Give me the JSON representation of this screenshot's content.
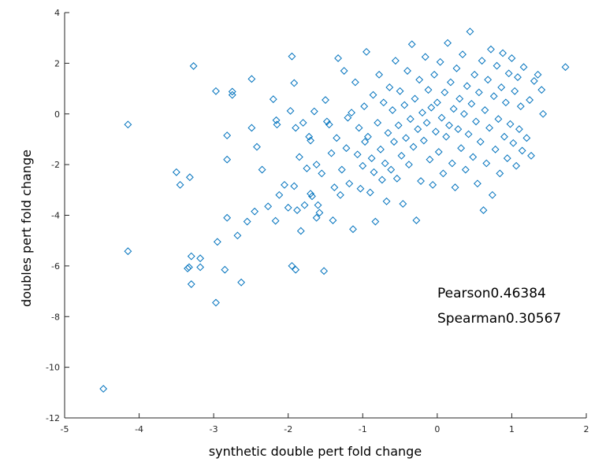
{
  "chart_data": {
    "type": "scatter",
    "title": "",
    "xlabel": "synthetic double pert fold change",
    "ylabel": "doubles pert fold change",
    "xlim": [
      -5,
      2
    ],
    "ylim": [
      -12,
      4
    ],
    "xticks": [
      -5,
      -4,
      -3,
      -2,
      -1,
      0,
      1,
      2
    ],
    "yticks": [
      -12,
      -10,
      -8,
      -6,
      -4,
      -2,
      0,
      2,
      4
    ],
    "xtick_labels": [
      "-5",
      "-4",
      "-3",
      "-2",
      "-1",
      "0",
      "1",
      "2"
    ],
    "ytick_labels": [
      "-12",
      "-10",
      "-8",
      "-6",
      "-4",
      "-2",
      "0",
      "2",
      "4"
    ],
    "marker": "diamond",
    "marker_color": "#0072BD",
    "grid": false,
    "annotations": [
      "Pearson0.46384",
      "Spearman0.30567"
    ],
    "points": [
      [
        -4.48,
        -10.85
      ],
      [
        -4.15,
        -5.42
      ],
      [
        -4.15,
        -0.42
      ],
      [
        -3.27,
        1.89
      ],
      [
        -3.5,
        -2.3
      ],
      [
        -3.45,
        -2.8
      ],
      [
        -3.32,
        -2.5
      ],
      [
        -3.35,
        -6.1
      ],
      [
        -3.3,
        -5.62
      ],
      [
        -3.33,
        -6.05
      ],
      [
        -3.3,
        -6.72
      ],
      [
        -3.18,
        -5.7
      ],
      [
        -3.18,
        -6.05
      ],
      [
        -2.97,
        -7.45
      ],
      [
        -2.95,
        -5.05
      ],
      [
        -2.85,
        -6.15
      ],
      [
        -2.82,
        -4.1
      ],
      [
        -2.82,
        -1.8
      ],
      [
        -2.82,
        -0.85
      ],
      [
        -2.97,
        0.9
      ],
      [
        -2.75,
        0.75
      ],
      [
        -2.75,
        0.88
      ],
      [
        -2.68,
        -4.8
      ],
      [
        -2.63,
        -6.65
      ],
      [
        -2.55,
        -4.25
      ],
      [
        -2.49,
        -0.55
      ],
      [
        -2.49,
        1.38
      ],
      [
        -2.45,
        -3.85
      ],
      [
        -2.42,
        -1.3
      ],
      [
        -2.35,
        -2.2
      ],
      [
        -2.27,
        -3.65
      ],
      [
        -2.2,
        0.58
      ],
      [
        -2.17,
        -4.22
      ],
      [
        -2.16,
        -0.25
      ],
      [
        -2.15,
        -0.42
      ],
      [
        -2.12,
        -3.2
      ],
      [
        -2.05,
        -2.8
      ],
      [
        -2.0,
        -3.7
      ],
      [
        -1.97,
        0.12
      ],
      [
        -1.95,
        2.27
      ],
      [
        -1.95,
        -6.0
      ],
      [
        -1.92,
        1.22
      ],
      [
        -1.92,
        -2.85
      ],
      [
        -1.9,
        -6.15
      ],
      [
        -1.9,
        -0.55
      ],
      [
        -1.88,
        -3.8
      ],
      [
        -1.85,
        -1.7
      ],
      [
        -1.83,
        -4.62
      ],
      [
        -1.8,
        -0.35
      ],
      [
        -1.78,
        -3.6
      ],
      [
        -1.75,
        -2.15
      ],
      [
        -1.72,
        -0.9
      ],
      [
        -1.7,
        -1.05
      ],
      [
        -1.7,
        -3.15
      ],
      [
        -1.68,
        -3.25
      ],
      [
        -1.65,
        0.1
      ],
      [
        -1.62,
        -2.0
      ],
      [
        -1.62,
        -4.1
      ],
      [
        -1.6,
        -3.6
      ],
      [
        -1.58,
        -3.9
      ],
      [
        -1.55,
        -2.35
      ],
      [
        -1.52,
        -6.2
      ],
      [
        -1.5,
        0.55
      ],
      [
        -1.48,
        -0.3
      ],
      [
        -1.45,
        -0.42
      ],
      [
        -1.42,
        -1.55
      ],
      [
        -1.4,
        -4.2
      ],
      [
        -1.38,
        -2.9
      ],
      [
        -1.35,
        -0.95
      ],
      [
        -1.33,
        2.2
      ],
      [
        -1.3,
        -3.2
      ],
      [
        -1.28,
        -2.2
      ],
      [
        -1.25,
        1.7
      ],
      [
        -1.22,
        -1.35
      ],
      [
        -1.2,
        -0.15
      ],
      [
        -1.18,
        -2.75
      ],
      [
        -1.15,
        0.05
      ],
      [
        -1.13,
        -4.55
      ],
      [
        -1.1,
        1.25
      ],
      [
        -1.07,
        -1.6
      ],
      [
        -1.05,
        -0.55
      ],
      [
        -1.03,
        -2.95
      ],
      [
        -1.0,
        -2.05
      ],
      [
        -0.98,
        0.3
      ],
      [
        -0.97,
        -1.1
      ],
      [
        -0.95,
        2.45
      ],
      [
        -0.93,
        -0.9
      ],
      [
        -0.9,
        -3.1
      ],
      [
        -0.88,
        -1.75
      ],
      [
        -0.86,
        0.75
      ],
      [
        -0.85,
        -2.3
      ],
      [
        -0.83,
        -4.25
      ],
      [
        -0.8,
        -0.35
      ],
      [
        -0.78,
        1.55
      ],
      [
        -0.76,
        -1.4
      ],
      [
        -0.74,
        -2.6
      ],
      [
        -0.72,
        0.45
      ],
      [
        -0.7,
        -1.95
      ],
      [
        -0.68,
        -3.45
      ],
      [
        -0.66,
        -0.75
      ],
      [
        -0.64,
        1.05
      ],
      [
        -0.62,
        -2.2
      ],
      [
        -0.6,
        0.15
      ],
      [
        -0.58,
        -1.1
      ],
      [
        -0.56,
        2.1
      ],
      [
        -0.54,
        -2.55
      ],
      [
        -0.52,
        -0.45
      ],
      [
        -0.5,
        0.9
      ],
      [
        -0.48,
        -1.65
      ],
      [
        -0.46,
        -3.55
      ],
      [
        -0.44,
        0.35
      ],
      [
        -0.42,
        -0.95
      ],
      [
        -0.4,
        1.7
      ],
      [
        -0.38,
        -2.0
      ],
      [
        -0.36,
        -0.2
      ],
      [
        -0.34,
        2.75
      ],
      [
        -0.32,
        -1.3
      ],
      [
        -0.3,
        0.6
      ],
      [
        -0.28,
        -4.2
      ],
      [
        -0.26,
        -0.6
      ],
      [
        -0.24,
        1.35
      ],
      [
        -0.22,
        -2.65
      ],
      [
        -0.2,
        0.05
      ],
      [
        -0.18,
        -1.05
      ],
      [
        -0.16,
        2.25
      ],
      [
        -0.14,
        -0.35
      ],
      [
        -0.12,
        0.95
      ],
      [
        -0.1,
        -1.8
      ],
      [
        -0.08,
        0.25
      ],
      [
        -0.06,
        -2.8
      ],
      [
        -0.04,
        1.55
      ],
      [
        -0.02,
        -0.7
      ],
      [
        0.0,
        0.45
      ],
      [
        0.02,
        -1.5
      ],
      [
        0.04,
        2.05
      ],
      [
        0.06,
        -0.15
      ],
      [
        0.08,
        -2.35
      ],
      [
        0.1,
        0.85
      ],
      [
        0.12,
        -0.9
      ],
      [
        0.14,
        2.8
      ],
      [
        0.16,
        -0.45
      ],
      [
        0.18,
        1.25
      ],
      [
        0.2,
        -1.95
      ],
      [
        0.22,
        0.2
      ],
      [
        0.24,
        -2.9
      ],
      [
        0.26,
        1.8
      ],
      [
        0.28,
        -0.6
      ],
      [
        0.3,
        0.6
      ],
      [
        0.32,
        -1.35
      ],
      [
        0.34,
        2.35
      ],
      [
        0.36,
        0.0
      ],
      [
        0.38,
        -2.2
      ],
      [
        0.4,
        1.1
      ],
      [
        0.42,
        -0.8
      ],
      [
        0.44,
        3.25
      ],
      [
        0.46,
        0.4
      ],
      [
        0.48,
        -1.7
      ],
      [
        0.5,
        1.55
      ],
      [
        0.52,
        -0.3
      ],
      [
        0.54,
        -2.75
      ],
      [
        0.56,
        0.85
      ],
      [
        0.58,
        -1.1
      ],
      [
        0.6,
        2.1
      ],
      [
        0.62,
        -3.8
      ],
      [
        0.64,
        0.15
      ],
      [
        0.66,
        -1.95
      ],
      [
        0.68,
        1.35
      ],
      [
        0.7,
        -0.55
      ],
      [
        0.72,
        2.55
      ],
      [
        0.74,
        -3.2
      ],
      [
        0.76,
        0.7
      ],
      [
        0.78,
        -1.4
      ],
      [
        0.8,
        1.9
      ],
      [
        0.82,
        -0.2
      ],
      [
        0.84,
        -2.35
      ],
      [
        0.86,
        1.05
      ],
      [
        0.88,
        2.4
      ],
      [
        0.9,
        -0.9
      ],
      [
        0.92,
        0.45
      ],
      [
        0.94,
        -1.75
      ],
      [
        0.96,
        1.6
      ],
      [
        0.98,
        -0.4
      ],
      [
        1.0,
        2.2
      ],
      [
        1.02,
        -1.15
      ],
      [
        1.04,
        0.9
      ],
      [
        1.06,
        -2.05
      ],
      [
        1.08,
        1.45
      ],
      [
        1.1,
        -0.6
      ],
      [
        1.12,
        0.3
      ],
      [
        1.14,
        -1.45
      ],
      [
        1.16,
        1.85
      ],
      [
        1.2,
        -0.95
      ],
      [
        1.24,
        0.55
      ],
      [
        1.26,
        -1.65
      ],
      [
        1.3,
        1.3
      ],
      [
        1.35,
        1.55
      ],
      [
        1.4,
        0.95
      ],
      [
        1.42,
        0.0
      ],
      [
        1.72,
        1.85
      ]
    ]
  }
}
